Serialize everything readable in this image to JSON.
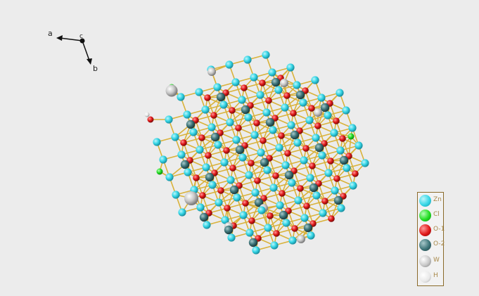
{
  "axes": {
    "a": "a",
    "b": "b",
    "c": "c"
  },
  "legend": {
    "items": [
      {
        "label": "Zn",
        "color": "#35d6e6"
      },
      {
        "label": "Cl",
        "color": "#22dd22"
      },
      {
        "label": "O-1",
        "color": "#e01818"
      },
      {
        "label": "O-2",
        "color": "#3d7478"
      },
      {
        "label": "W",
        "color": "#c8c8c8"
      },
      {
        "label": "H",
        "color": "#e8e8e8"
      }
    ]
  },
  "colors": {
    "bond": "#d9b23a",
    "background": "#ececec",
    "legend_border": "#8a6a2a"
  }
}
